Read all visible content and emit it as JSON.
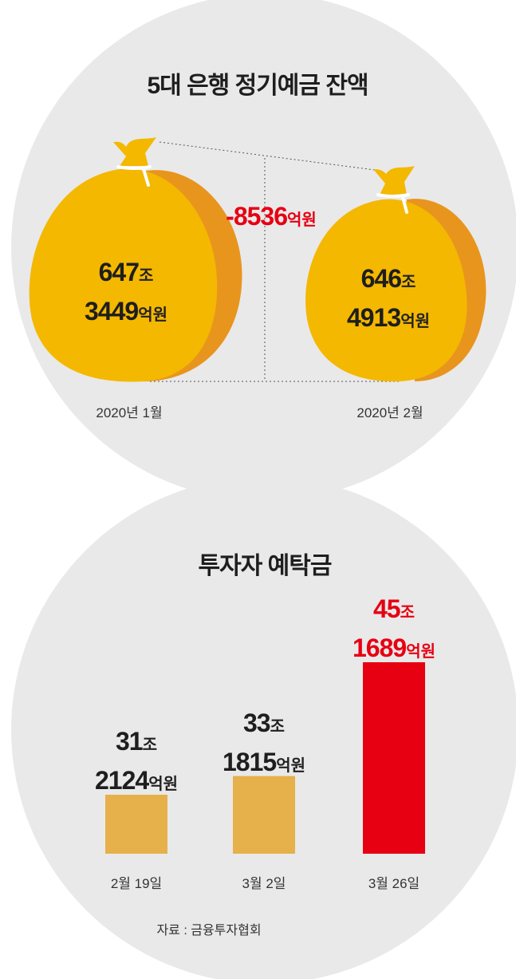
{
  "colors": {
    "circle_bg": "#e9e9e9",
    "bag_front": "#f4b800",
    "bag_back": "#e8951e",
    "bar_normal": "#e6b04a",
    "bar_highlight": "#e60012",
    "red_text": "#e60012"
  },
  "chart_data": [
    {
      "type": "bar",
      "title": "5대 은행 정기예금 잔액",
      "categories": [
        "2020년 1월",
        "2020년 2월"
      ],
      "values": [
        6473449,
        6464913
      ],
      "value_unit": "억원",
      "value_labels": [
        {
          "jo": "647",
          "jo_unit": "조",
          "eok": "3449",
          "eok_unit": "억원"
        },
        {
          "jo": "646",
          "jo_unit": "조",
          "eok": "4913",
          "eok_unit": "억원"
        }
      ],
      "change_label": {
        "value": "-8536",
        "unit": "억원"
      }
    },
    {
      "type": "bar",
      "title": "투자자 예탁금",
      "categories": [
        "2월 19일",
        "3월 2일",
        "3월 26일"
      ],
      "values": [
        312124,
        331815,
        451689
      ],
      "value_unit": "억원",
      "value_labels": [
        {
          "jo": "31",
          "jo_unit": "조",
          "eok": "2124",
          "eok_unit": "억원"
        },
        {
          "jo": "33",
          "jo_unit": "조",
          "eok": "1815",
          "eok_unit": "억원"
        },
        {
          "jo": "45",
          "jo_unit": "조",
          "eok": "1689",
          "eok_unit": "억원"
        }
      ],
      "highlight_index": 2
    }
  ],
  "source": "자료 : 금융투자협회"
}
